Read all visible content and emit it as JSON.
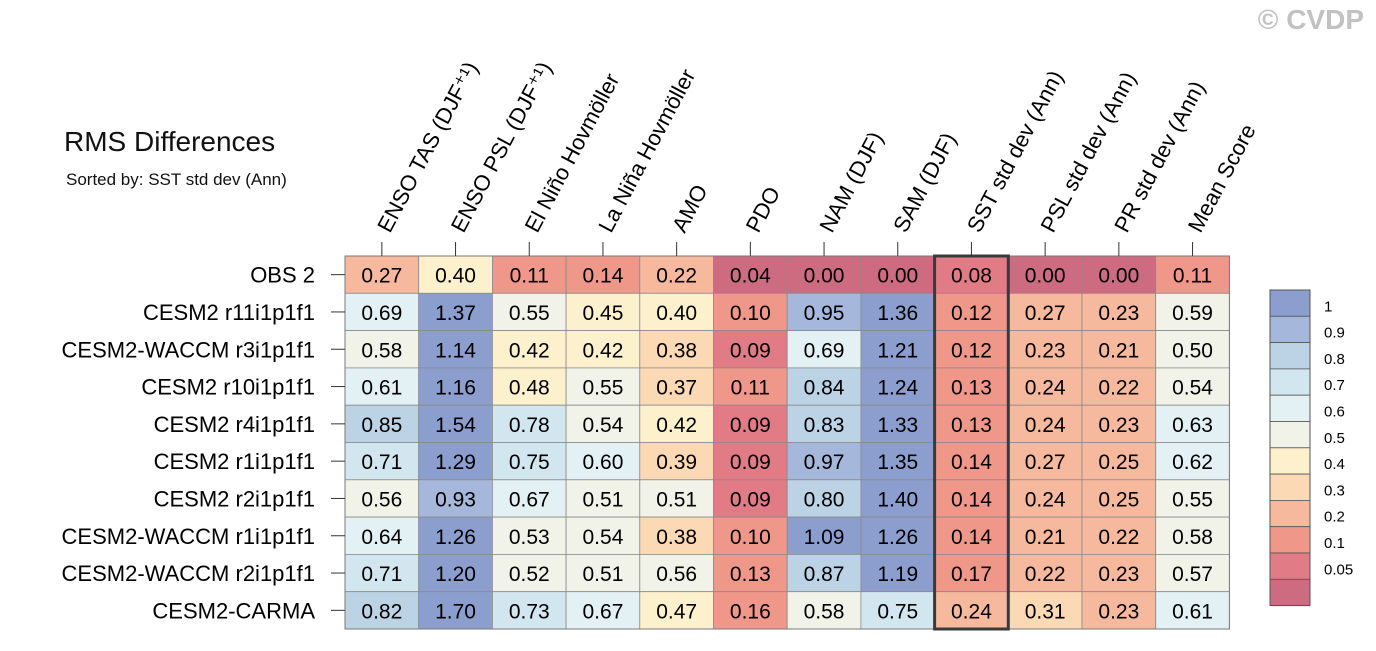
{
  "watermark": "© CVDP",
  "chart_data": {
    "type": "heatmap",
    "title": "RMS Differences",
    "subtitle": "Sorted by: SST std dev (Ann)",
    "columns": [
      "ENSO TAS (DJF⁺¹)",
      "ENSO PSL (DJF⁺¹)",
      "El Niño Hovmöller",
      "La Niña Hovmöller",
      "AMO",
      "PDO",
      "NAM (DJF)",
      "SAM (DJF)",
      "SST std dev (Ann)",
      "PSL std dev (Ann)",
      "PR std dev (Ann)",
      "Mean Score"
    ],
    "rows": [
      "OBS 2",
      "CESM2 r11i1p1f1",
      "CESM2-WACCM r3i1p1f1",
      "CESM2 r10i1p1f1",
      "CESM2 r4i1p1f1",
      "CESM2 r1i1p1f1",
      "CESM2 r2i1p1f1",
      "CESM2-WACCM r1i1p1f1",
      "CESM2-WACCM r2i1p1f1",
      "CESM2-CARMA"
    ],
    "values": [
      [
        "0.27",
        "0.40",
        "0.11",
        "0.14",
        "0.22",
        "0.04",
        "0.00",
        "0.00",
        "0.08",
        "0.00",
        "0.00",
        "0.11"
      ],
      [
        "0.69",
        "1.37",
        "0.55",
        "0.45",
        "0.40",
        "0.10",
        "0.95",
        "1.36",
        "0.12",
        "0.27",
        "0.23",
        "0.59"
      ],
      [
        "0.58",
        "1.14",
        "0.42",
        "0.42",
        "0.38",
        "0.09",
        "0.69",
        "1.21",
        "0.12",
        "0.23",
        "0.21",
        "0.50"
      ],
      [
        "0.61",
        "1.16",
        "0.48",
        "0.55",
        "0.37",
        "0.11",
        "0.84",
        "1.24",
        "0.13",
        "0.24",
        "0.22",
        "0.54"
      ],
      [
        "0.85",
        "1.54",
        "0.78",
        "0.54",
        "0.42",
        "0.09",
        "0.83",
        "1.33",
        "0.13",
        "0.24",
        "0.23",
        "0.63"
      ],
      [
        "0.71",
        "1.29",
        "0.75",
        "0.60",
        "0.39",
        "0.09",
        "0.97",
        "1.35",
        "0.14",
        "0.27",
        "0.25",
        "0.62"
      ],
      [
        "0.56",
        "0.93",
        "0.67",
        "0.51",
        "0.51",
        "0.09",
        "0.80",
        "1.40",
        "0.14",
        "0.24",
        "0.25",
        "0.55"
      ],
      [
        "0.64",
        "1.26",
        "0.53",
        "0.54",
        "0.38",
        "0.10",
        "1.09",
        "1.26",
        "0.14",
        "0.21",
        "0.22",
        "0.58"
      ],
      [
        "0.71",
        "1.20",
        "0.52",
        "0.51",
        "0.56",
        "0.13",
        "0.87",
        "1.19",
        "0.17",
        "0.22",
        "0.23",
        "0.57"
      ],
      [
        "0.82",
        "1.70",
        "0.73",
        "0.67",
        "0.47",
        "0.16",
        "0.58",
        "0.75",
        "0.24",
        "0.31",
        "0.23",
        "0.61"
      ]
    ],
    "highlighted_column": "SST std dev (Ann)",
    "colorbar": {
      "labels": [
        "1",
        "0.9",
        "0.8",
        "0.7",
        "0.6",
        "0.5",
        "0.4",
        "0.3",
        "0.2",
        "0.1",
        "0.05"
      ],
      "colors": [
        "#8b9ecd",
        "#a5b8db",
        "#bcd3e6",
        "#d2e6ef",
        "#e3f1f4",
        "#f1f3e8",
        "#fdf0cc",
        "#fbd9b4",
        "#f6b99d",
        "#ef9789",
        "#e17b86",
        "#cd6b80"
      ]
    }
  }
}
